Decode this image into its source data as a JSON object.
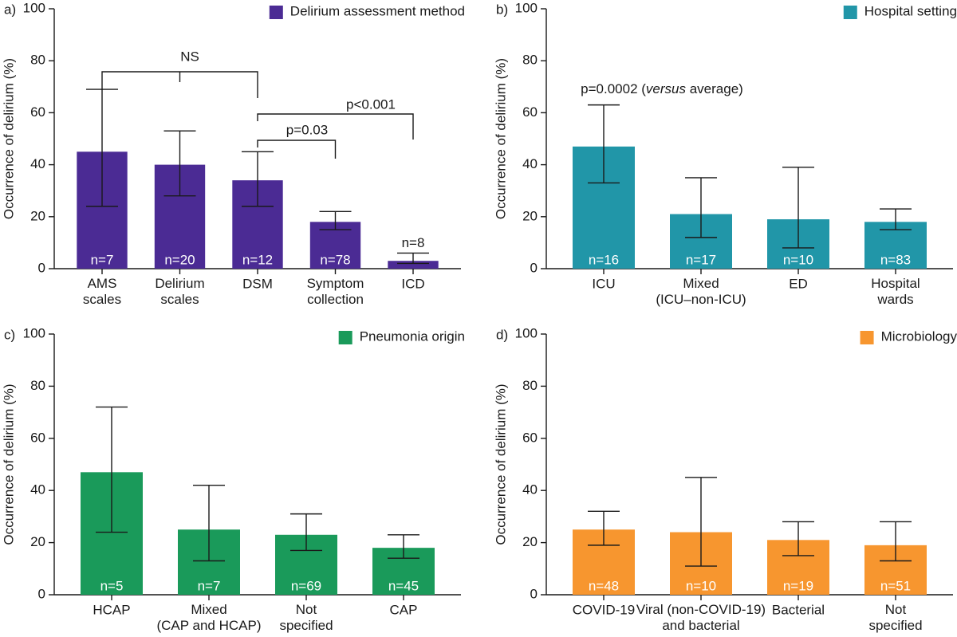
{
  "chart_data": [
    {
      "type": "bar",
      "panel": "a)",
      "legend": "Delirium assessment method",
      "color": "#4b2b94",
      "y_label": "Occurrence of delirium (%)",
      "categories": [
        "AMS\nscales",
        "Delirium\nscales",
        "DSM",
        "Symptom\ncollection",
        "ICD"
      ],
      "values": [
        45,
        40,
        34,
        18,
        3
      ],
      "lower": [
        24,
        28,
        24,
        15,
        2
      ],
      "upper": [
        69,
        53,
        45,
        22,
        6
      ],
      "n_labels": [
        "n=7",
        "n=20",
        "n=12",
        "n=78",
        "n=8"
      ],
      "annotations": [
        "NS",
        "p<0.001",
        "p=0.03"
      ],
      "ylim": [
        0,
        100
      ],
      "yticks": [
        0,
        20,
        40,
        60,
        80,
        100
      ]
    },
    {
      "type": "bar",
      "panel": "b)",
      "legend": "Hospital setting",
      "color": "#2196a8",
      "y_label": "Occurrence of delirium (%)",
      "categories": [
        "ICU",
        "Mixed\n(ICU–non-ICU)",
        "ED",
        "Hospital\nwards"
      ],
      "values": [
        47,
        21,
        19,
        18
      ],
      "lower": [
        33,
        12,
        8,
        15
      ],
      "upper": [
        63,
        35,
        39,
        23
      ],
      "n_labels": [
        "n=16",
        "n=17",
        "n=10",
        "n=83"
      ],
      "annotation_parts": [
        "p=0.0002 (",
        "versus",
        " average)"
      ],
      "ylim": [
        0,
        100
      ],
      "yticks": [
        0,
        20,
        40,
        60,
        80,
        100
      ]
    },
    {
      "type": "bar",
      "panel": "c)",
      "legend": "Pneumonia origin",
      "color": "#1a9a5a",
      "y_label": "Occurrence of delirium (%)",
      "categories": [
        "HCAP",
        "Mixed\n(CAP and HCAP)",
        "Not\nspecified",
        "CAP"
      ],
      "values": [
        47,
        25,
        23,
        18
      ],
      "lower": [
        24,
        13,
        17,
        14
      ],
      "upper": [
        72,
        42,
        31,
        23
      ],
      "n_labels": [
        "n=5",
        "n=7",
        "n=69",
        "n=45"
      ],
      "ylim": [
        0,
        100
      ],
      "yticks": [
        0,
        20,
        40,
        60,
        80,
        100
      ]
    },
    {
      "type": "bar",
      "panel": "d)",
      "legend": "Microbiology",
      "color": "#f7962f",
      "y_label": "Occurrence of delirium (%)",
      "categories": [
        "COVID-19",
        "Viral (non-COVID-19)\nand bacterial",
        "Bacterial",
        "Not\nspecified"
      ],
      "values": [
        25,
        24,
        21,
        19
      ],
      "lower": [
        19,
        11,
        15,
        13
      ],
      "upper": [
        32,
        45,
        28,
        28
      ],
      "n_labels": [
        "n=48",
        "n=10",
        "n=19",
        "n=51"
      ],
      "ylim": [
        0,
        100
      ],
      "yticks": [
        0,
        20,
        40,
        60,
        80,
        100
      ]
    }
  ]
}
